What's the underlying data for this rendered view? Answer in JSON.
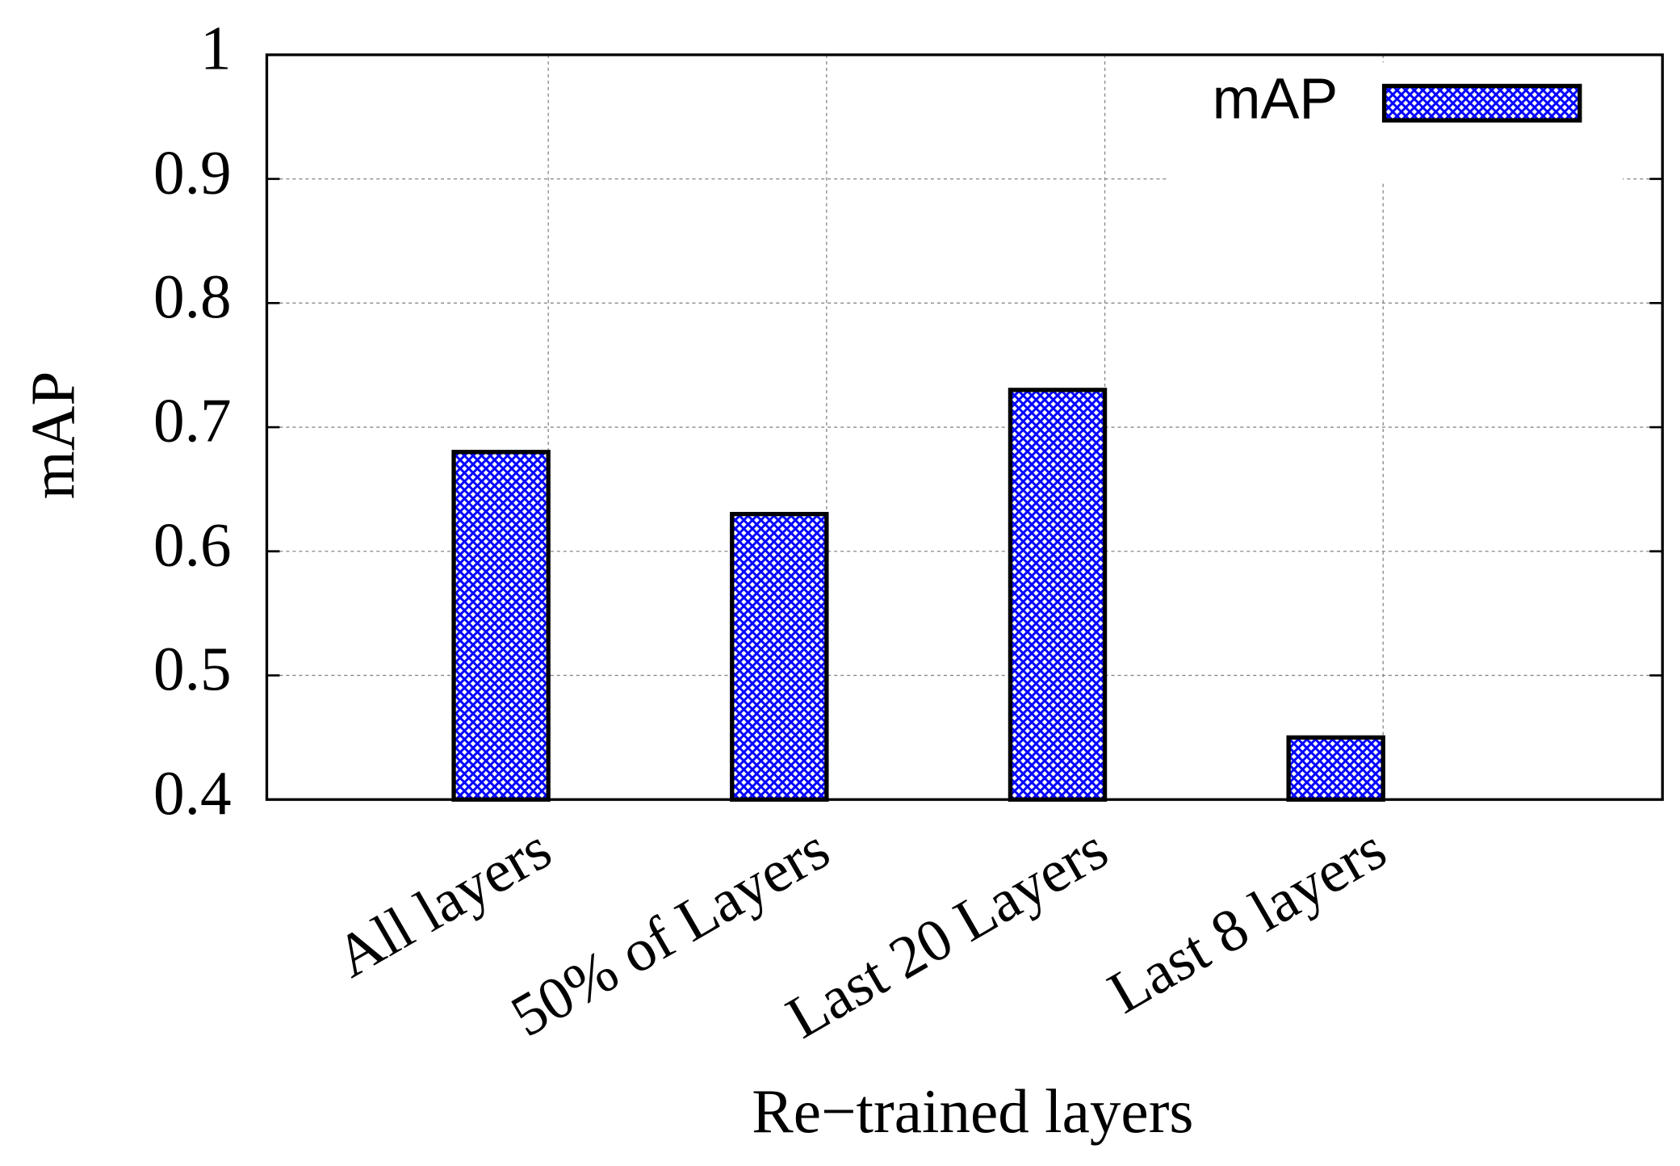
{
  "chart_data": {
    "type": "bar",
    "categories": [
      "All layers",
      "50% of Layers",
      "Last 20 Layers",
      "Last 8 layers"
    ],
    "series": [
      {
        "name": "mAP",
        "color": "#0000ff",
        "values": [
          0.68,
          0.63,
          0.73,
          0.45
        ]
      }
    ],
    "xlabel": "Re−trained layers",
    "ylabel": "mAP",
    "ylim": [
      0.4,
      1
    ],
    "yticks": [
      0.4,
      0.5,
      0.6,
      0.7,
      0.8,
      0.9,
      1
    ],
    "grid": true,
    "legend": "upper right"
  }
}
